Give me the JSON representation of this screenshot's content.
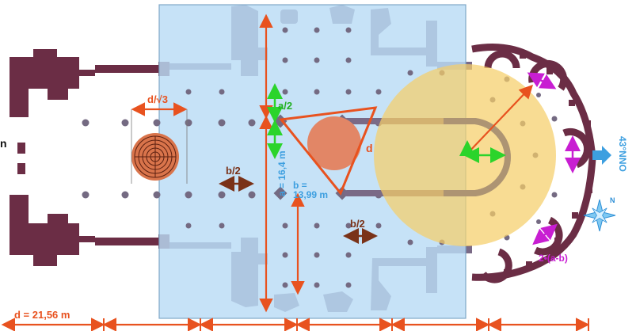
{
  "labels": {
    "d_over_root3": "d/√3",
    "a_half_green": "a/2",
    "b_half_left": "b/2",
    "a_value_1": "a = 16,4 m",
    "d_triangle": "d",
    "b_value_1": "b =",
    "b_value_2": "13,99 m",
    "b_half_bottom": "b/2",
    "two_a_minus_b": "2•(a-b)",
    "orientation": "43°NNO",
    "compass_n": "N",
    "d_bottom": "d = 21,56 m",
    "left_edge_letter": "n"
  },
  "colors": {
    "nave_overlay": "#b9dcf5",
    "nave_border": "#7fa8c8",
    "wall": "#6b2d45",
    "column": "#746a82",
    "orange": "#e8521f",
    "green": "#2bd42b",
    "magenta": "#c81ed2",
    "brown": "#7a3218",
    "yellow_circle": "#f5cf6a",
    "salmon_circle": "#e28666",
    "blue_text": "#3d9fe0",
    "dim_text": "#3a8fd6"
  },
  "icons": [
    "labyrinth-icon",
    "compass-star-icon",
    "direction-arrow-icon"
  ]
}
